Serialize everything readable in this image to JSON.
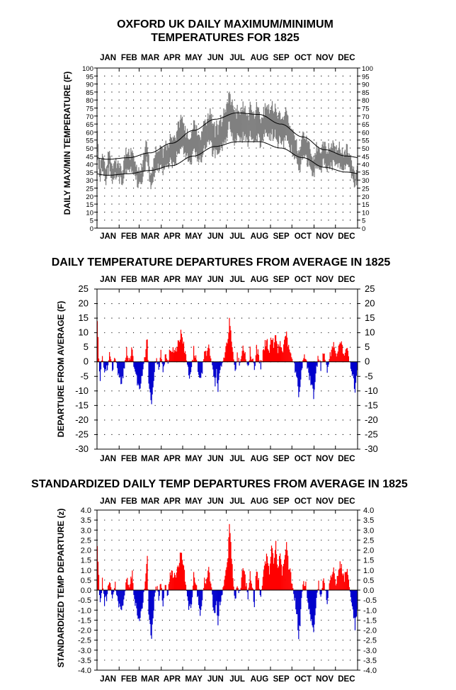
{
  "chart_data": [
    {
      "type": "line",
      "title_line1": "OXFORD UK DAILY MAXIMUM/MINIMUM",
      "title_line2": "TEMPERATURES FOR 1825",
      "ylabel": "DAILY MAX/MIN TEMPERATURE (F)",
      "months": [
        "JAN",
        "FEB",
        "MAR",
        "APR",
        "MAY",
        "JUN",
        "JUL",
        "AUG",
        "SEP",
        "OCT",
        "NOV",
        "DEC"
      ],
      "ylim": [
        0,
        100
      ],
      "yticks": [
        0,
        5,
        10,
        15,
        20,
        25,
        30,
        35,
        40,
        45,
        50,
        55,
        60,
        65,
        70,
        75,
        80,
        85,
        90,
        95,
        100
      ],
      "grid": true,
      "colors": {
        "observed": "#808080",
        "normals": "#000000"
      },
      "series": [
        {
          "name": "",
          "kind": "observed-range"
        },
        {
          "name": "",
          "kind": "normal-max",
          "values": [
            43,
            44,
            47,
            53,
            61,
            68,
            72,
            71,
            65,
            57,
            49,
            45
          ]
        },
        {
          "name": "",
          "kind": "normal-min",
          "values": [
            33,
            34,
            36,
            39,
            45,
            51,
            54,
            54,
            50,
            44,
            38,
            35
          ]
        }
      ]
    },
    {
      "type": "bar",
      "title": "DAILY TEMPERATURE DEPARTURES FROM AVERAGE IN 1825",
      "ylabel": "DEPARTURE FROM AVERAGE (F)",
      "months": [
        "JAN",
        "FEB",
        "MAR",
        "APR",
        "MAY",
        "JUN",
        "JUL",
        "AUG",
        "SEP",
        "OCT",
        "NOV",
        "DEC"
      ],
      "ylim": [
        -30,
        25
      ],
      "yticks": [
        -30,
        -25,
        -20,
        -15,
        -10,
        -5,
        0,
        5,
        10,
        15,
        20,
        25
      ],
      "grid": true,
      "colors": {
        "positive": "#ff0000",
        "negative": "#0000cc"
      },
      "anchors": [
        [
          1,
          14
        ],
        [
          3,
          2
        ],
        [
          5,
          -6
        ],
        [
          8,
          3
        ],
        [
          11,
          -4
        ],
        [
          15,
          -2
        ],
        [
          18,
          4
        ],
        [
          22,
          -3
        ],
        [
          26,
          2
        ],
        [
          30,
          -4
        ],
        [
          35,
          -8
        ],
        [
          38,
          -3
        ],
        [
          42,
          4
        ],
        [
          46,
          1
        ],
        [
          50,
          5
        ],
        [
          53,
          -3
        ],
        [
          56,
          -6
        ],
        [
          60,
          -9
        ],
        [
          64,
          -5
        ],
        [
          68,
          3
        ],
        [
          71,
          9
        ],
        [
          73,
          -6
        ],
        [
          75,
          -10
        ],
        [
          77,
          -14
        ],
        [
          79,
          -8
        ],
        [
          81,
          -3
        ],
        [
          84,
          1
        ],
        [
          87,
          -2
        ],
        [
          90,
          3
        ],
        [
          93,
          -4
        ],
        [
          96,
          2
        ],
        [
          100,
          -1
        ],
        [
          103,
          5
        ],
        [
          106,
          4
        ],
        [
          110,
          3
        ],
        [
          113,
          6
        ],
        [
          116,
          8
        ],
        [
          119,
          11
        ],
        [
          121,
          7
        ],
        [
          124,
          3
        ],
        [
          127,
          -2
        ],
        [
          130,
          -5
        ],
        [
          133,
          -3
        ],
        [
          136,
          4
        ],
        [
          139,
          2
        ],
        [
          142,
          -2
        ],
        [
          145,
          -6
        ],
        [
          148,
          -3
        ],
        [
          151,
          3
        ],
        [
          154,
          2
        ],
        [
          157,
          5
        ],
        [
          160,
          2
        ],
        [
          163,
          -4
        ],
        [
          166,
          -7
        ],
        [
          168,
          -3
        ],
        [
          170,
          -9
        ],
        [
          172,
          -3
        ],
        [
          175,
          -2
        ],
        [
          178,
          2
        ],
        [
          181,
          4
        ],
        [
          184,
          8
        ],
        [
          186,
          15
        ],
        [
          188,
          10
        ],
        [
          190,
          5
        ],
        [
          192,
          1
        ],
        [
          194,
          -3
        ],
        [
          197,
          2
        ],
        [
          200,
          -1
        ],
        [
          203,
          3
        ],
        [
          206,
          5
        ],
        [
          209,
          2
        ],
        [
          212,
          -2
        ],
        [
          215,
          4
        ],
        [
          218,
          1
        ],
        [
          221,
          -3
        ],
        [
          224,
          5
        ],
        [
          227,
          2
        ],
        [
          230,
          -2
        ],
        [
          233,
          3
        ],
        [
          236,
          6
        ],
        [
          239,
          7
        ],
        [
          242,
          3
        ],
        [
          245,
          9
        ],
        [
          248,
          6
        ],
        [
          251,
          10
        ],
        [
          254,
          4
        ],
        [
          257,
          8
        ],
        [
          260,
          3
        ],
        [
          263,
          7
        ],
        [
          266,
          10
        ],
        [
          269,
          5
        ],
        [
          272,
          3
        ],
        [
          275,
          1
        ],
        [
          278,
          -3
        ],
        [
          281,
          -7
        ],
        [
          283,
          -11
        ],
        [
          285,
          -8
        ],
        [
          287,
          -3
        ],
        [
          290,
          2
        ],
        [
          293,
          1
        ],
        [
          296,
          -3
        ],
        [
          299,
          -6
        ],
        [
          302,
          -9
        ],
        [
          304,
          -12
        ],
        [
          306,
          -6
        ],
        [
          308,
          -2
        ],
        [
          311,
          2
        ],
        [
          314,
          -2
        ],
        [
          317,
          3
        ],
        [
          320,
          1
        ],
        [
          323,
          -3
        ],
        [
          326,
          2
        ],
        [
          329,
          4
        ],
        [
          332,
          6
        ],
        [
          335,
          2
        ],
        [
          338,
          4
        ],
        [
          341,
          7
        ],
        [
          344,
          5
        ],
        [
          347,
          3
        ],
        [
          350,
          6
        ],
        [
          353,
          2
        ],
        [
          356,
          -2
        ],
        [
          359,
          -5
        ],
        [
          362,
          -10
        ],
        [
          365,
          -4
        ]
      ]
    },
    {
      "type": "bar",
      "title": "STANDARDIZED DAILY TEMP DEPARTURES FROM AVERAGE IN 1825",
      "ylabel": "STANDARDIZED TEMP DEPARTURE (z)",
      "months": [
        "JAN",
        "FEB",
        "MAR",
        "APR",
        "MAY",
        "JUN",
        "JUL",
        "AUG",
        "SEP",
        "OCT",
        "NOV",
        "DEC"
      ],
      "ylim": [
        -4.0,
        4.0
      ],
      "yticks": [
        -4.0,
        -3.5,
        -3.0,
        -2.5,
        -2.0,
        -1.5,
        -1.0,
        -0.5,
        0.0,
        0.5,
        1.0,
        1.5,
        2.0,
        2.5,
        3.0,
        3.5,
        4.0
      ],
      "grid": true,
      "colors": {
        "positive": "#ff0000",
        "negative": "#0000cc"
      },
      "anchors": [
        [
          1,
          2.0
        ],
        [
          3,
          0.6
        ],
        [
          5,
          -0.8
        ],
        [
          8,
          0.5
        ],
        [
          11,
          -0.6
        ],
        [
          15,
          -0.3
        ],
        [
          18,
          0.6
        ],
        [
          22,
          -0.5
        ],
        [
          26,
          0.3
        ],
        [
          30,
          -0.6
        ],
        [
          35,
          -1.2
        ],
        [
          38,
          -0.5
        ],
        [
          42,
          0.6
        ],
        [
          46,
          0.2
        ],
        [
          50,
          0.8
        ],
        [
          53,
          -0.5
        ],
        [
          56,
          -1.0
        ],
        [
          60,
          -1.5
        ],
        [
          64,
          -0.9
        ],
        [
          68,
          0.5
        ],
        [
          71,
          1.5
        ],
        [
          73,
          -1.0
        ],
        [
          75,
          -1.8
        ],
        [
          77,
          -2.4
        ],
        [
          79,
          -1.4
        ],
        [
          81,
          -0.5
        ],
        [
          84,
          0.2
        ],
        [
          87,
          -0.4
        ],
        [
          90,
          0.5
        ],
        [
          93,
          -0.7
        ],
        [
          96,
          0.3
        ],
        [
          100,
          -0.2
        ],
        [
          103,
          1.0
        ],
        [
          106,
          0.8
        ],
        [
          110,
          0.6
        ],
        [
          113,
          1.1
        ],
        [
          116,
          1.5
        ],
        [
          119,
          2.0
        ],
        [
          121,
          1.3
        ],
        [
          124,
          0.6
        ],
        [
          127,
          -0.4
        ],
        [
          130,
          -1.0
        ],
        [
          133,
          -0.6
        ],
        [
          136,
          0.8
        ],
        [
          139,
          0.4
        ],
        [
          142,
          -0.4
        ],
        [
          145,
          -1.1
        ],
        [
          148,
          -0.6
        ],
        [
          151,
          0.6
        ],
        [
          154,
          0.4
        ],
        [
          157,
          1.0
        ],
        [
          160,
          0.4
        ],
        [
          163,
          -0.7
        ],
        [
          166,
          -1.3
        ],
        [
          168,
          -0.6
        ],
        [
          170,
          -1.8
        ],
        [
          172,
          -0.6
        ],
        [
          175,
          -0.4
        ],
        [
          178,
          0.4
        ],
        [
          181,
          0.8
        ],
        [
          184,
          1.8
        ],
        [
          186,
          3.4
        ],
        [
          188,
          2.3
        ],
        [
          190,
          1.1
        ],
        [
          192,
          0.2
        ],
        [
          194,
          -0.6
        ],
        [
          197,
          0.4
        ],
        [
          200,
          -0.2
        ],
        [
          203,
          0.6
        ],
        [
          206,
          1.1
        ],
        [
          209,
          0.4
        ],
        [
          212,
          -0.4
        ],
        [
          215,
          0.8
        ],
        [
          218,
          0.2
        ],
        [
          221,
          -0.7
        ],
        [
          224,
          1.1
        ],
        [
          227,
          0.4
        ],
        [
          230,
          -0.4
        ],
        [
          233,
          0.7
        ],
        [
          236,
          1.4
        ],
        [
          239,
          1.8
        ],
        [
          242,
          0.8
        ],
        [
          245,
          2.1
        ],
        [
          248,
          1.5
        ],
        [
          251,
          2.3
        ],
        [
          254,
          1.0
        ],
        [
          257,
          1.9
        ],
        [
          260,
          0.8
        ],
        [
          263,
          1.7
        ],
        [
          266,
          2.2
        ],
        [
          269,
          1.2
        ],
        [
          272,
          0.7
        ],
        [
          275,
          0.2
        ],
        [
          278,
          -0.6
        ],
        [
          281,
          -1.4
        ],
        [
          283,
          -2.3
        ],
        [
          285,
          -1.6
        ],
        [
          287,
          -0.6
        ],
        [
          290,
          0.4
        ],
        [
          293,
          0.2
        ],
        [
          296,
          -0.6
        ],
        [
          299,
          -1.2
        ],
        [
          302,
          -1.8
        ],
        [
          304,
          -2.3
        ],
        [
          306,
          -1.2
        ],
        [
          308,
          -0.4
        ],
        [
          311,
          0.4
        ],
        [
          314,
          -0.4
        ],
        [
          317,
          0.6
        ],
        [
          320,
          0.2
        ],
        [
          323,
          -0.6
        ],
        [
          326,
          0.4
        ],
        [
          329,
          0.8
        ],
        [
          332,
          1.2
        ],
        [
          335,
          0.4
        ],
        [
          338,
          0.8
        ],
        [
          341,
          1.3
        ],
        [
          344,
          1.0
        ],
        [
          347,
          0.6
        ],
        [
          350,
          1.1
        ],
        [
          353,
          0.4
        ],
        [
          356,
          -0.4
        ],
        [
          359,
          -1.0
        ],
        [
          362,
          -1.8
        ],
        [
          365,
          -0.8
        ]
      ]
    }
  ]
}
